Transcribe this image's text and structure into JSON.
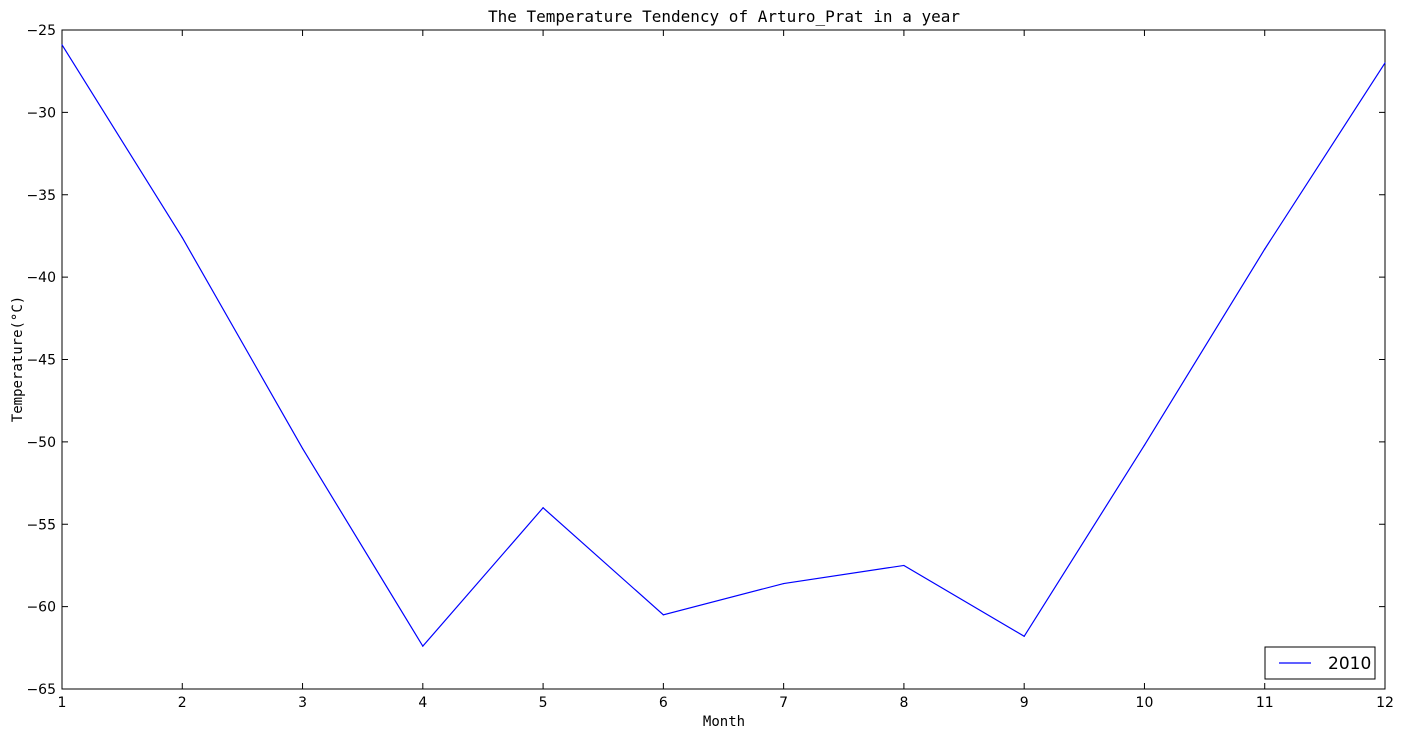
{
  "chart_data": {
    "type": "line",
    "title": "The Temperature Tendency of Arturo_Prat in a year",
    "xlabel": "Month",
    "ylabel": "Temperature(°C)",
    "x": [
      1,
      2,
      3,
      4,
      5,
      6,
      7,
      8,
      9,
      10,
      11,
      12
    ],
    "xlim": [
      1,
      12
    ],
    "ylim": [
      -65,
      -25
    ],
    "xticks": [
      "1",
      "2",
      "3",
      "4",
      "5",
      "6",
      "7",
      "8",
      "9",
      "10",
      "11",
      "12"
    ],
    "yticks": [
      "-25",
      "-30",
      "-35",
      "-40",
      "-45",
      "-50",
      "-55",
      "-60",
      "-65"
    ],
    "grid": false,
    "legend_position": "bottom-right",
    "series": [
      {
        "name": "2010",
        "color": "#0000ff",
        "values": [
          -25.9,
          -37.6,
          -50.4,
          -62.4,
          -54.0,
          -60.5,
          -58.6,
          -57.5,
          -61.8,
          -50.2,
          -38.3,
          -27.0
        ]
      }
    ]
  }
}
